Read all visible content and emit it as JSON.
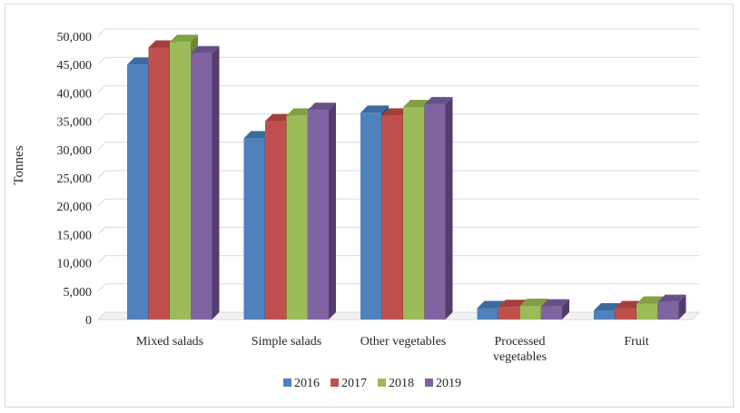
{
  "chart_data": {
    "type": "bar",
    "title": "",
    "xlabel": "",
    "ylabel": "Tonnes",
    "ylim": [
      0,
      50000
    ],
    "yticks": [
      "0",
      "5,000",
      "10,000",
      "15,000",
      "20,000",
      "25,000",
      "30,000",
      "35,000",
      "40,000",
      "45,000",
      "50,000"
    ],
    "categories": [
      [
        "Mixed salads"
      ],
      [
        "Simple salads"
      ],
      [
        "Other vegetables"
      ],
      [
        "Processed",
        "vegetables"
      ],
      [
        "Fruit"
      ]
    ],
    "series": [
      {
        "name": "2016",
        "color": "#4f81bd",
        "top": "#3e6a9f",
        "side": "#2f5285",
        "values": [
          45000,
          32000,
          36500,
          2000,
          1600
        ]
      },
      {
        "name": "2017",
        "color": "#c0504d",
        "top": "#a43f3c",
        "side": "#8a302e",
        "values": [
          48000,
          35000,
          36000,
          2200,
          2000
        ]
      },
      {
        "name": "2018",
        "color": "#9bbb59",
        "top": "#82a044",
        "side": "#6c8736",
        "values": [
          49000,
          36000,
          37500,
          2400,
          2800
        ]
      },
      {
        "name": "2019",
        "color": "#8064a2",
        "top": "#6a5088",
        "side": "#543d6e",
        "values": [
          47000,
          37000,
          38000,
          2300,
          3100
        ]
      }
    ],
    "grid": true,
    "legend_position": "bottom"
  }
}
